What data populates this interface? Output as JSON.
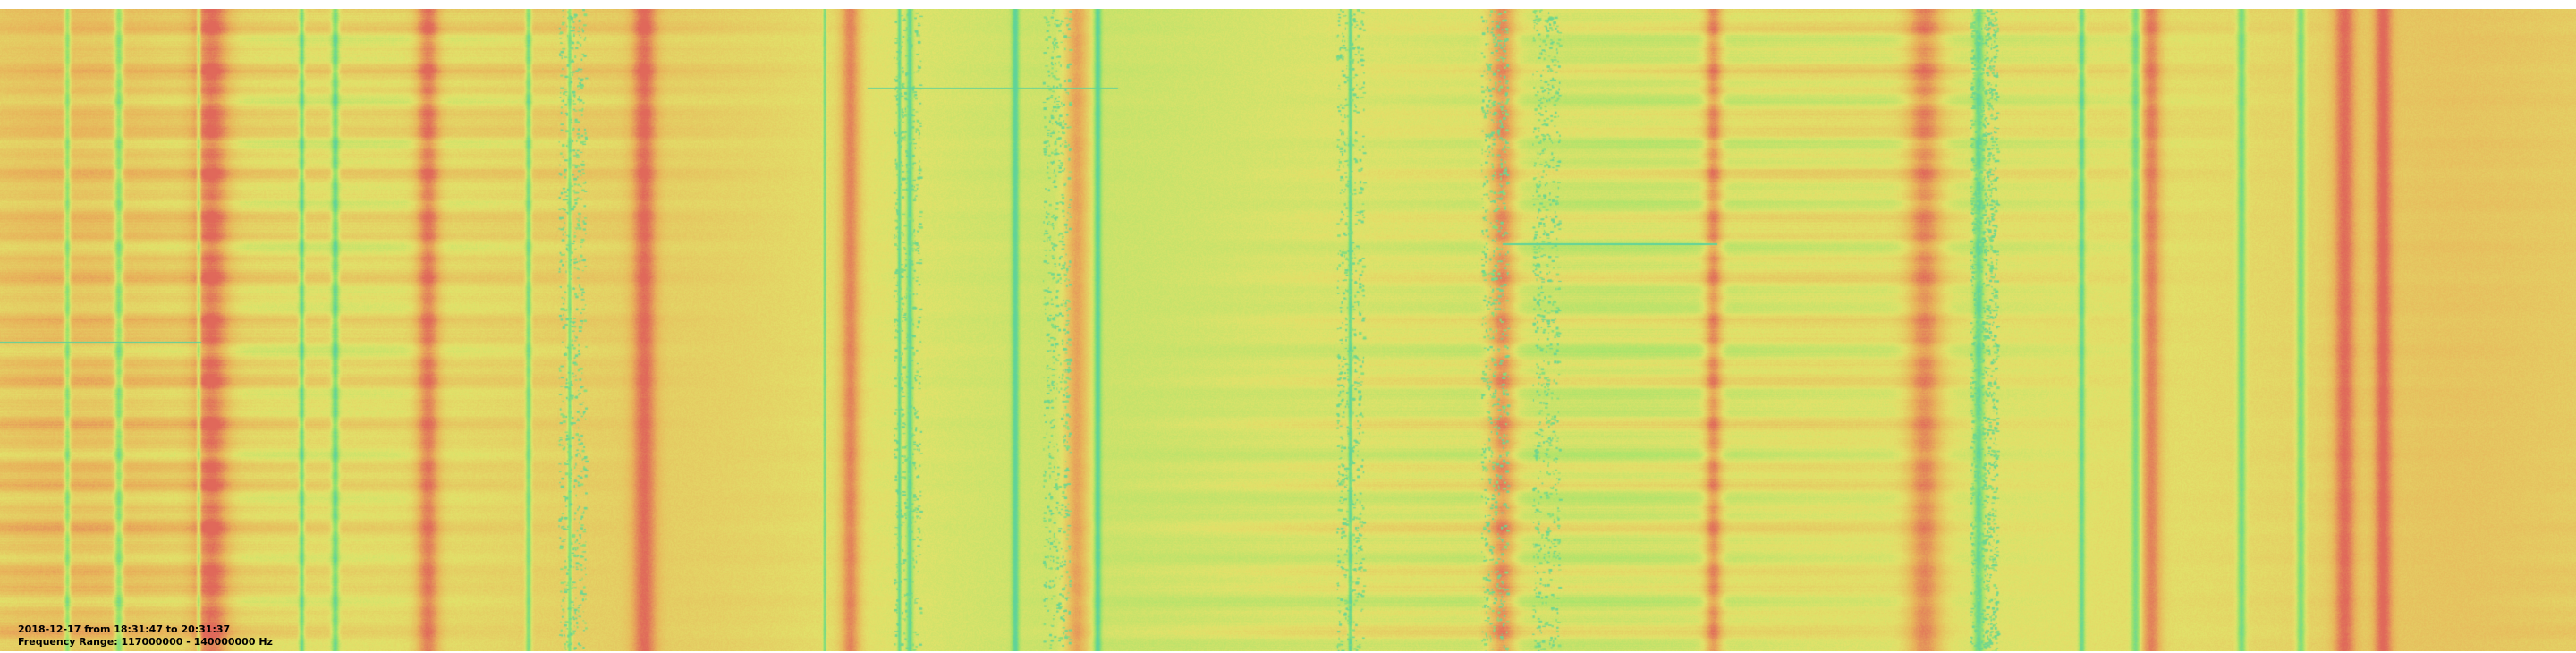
{
  "caption": {
    "date_line": "2018-12-17 from 18:31:47 to 20:31:37",
    "range_line": "Frequency Range:  117000000 - 140000000 Hz"
  },
  "colors": {
    "background": "#ffffff",
    "cold": "#5fd39a",
    "green": "#9fe36a",
    "yellow": "#e2e26a",
    "warm": "#e8b25a",
    "hot": "#e0685a"
  }
}
